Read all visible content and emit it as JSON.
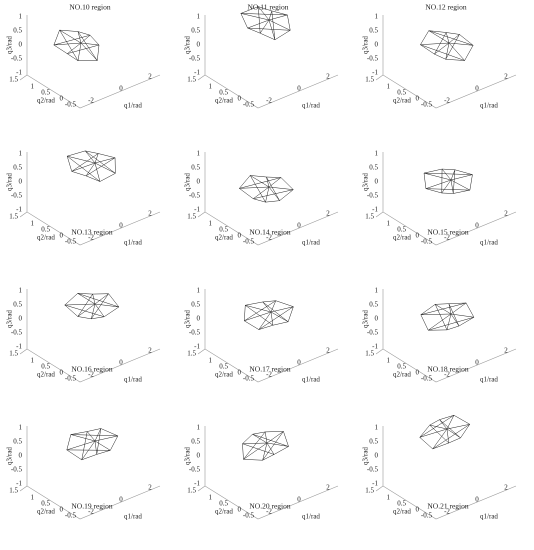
{
  "panels": [
    {
      "title": "NO.10 region"
    },
    {
      "title": "NO.11 region"
    },
    {
      "title": "NO.12 region"
    },
    {
      "title": "NO.13 region"
    },
    {
      "title": "NO.14 region"
    },
    {
      "title": "NO.15 region"
    },
    {
      "title": "NO.16 region"
    },
    {
      "title": "NO.17 region"
    },
    {
      "title": "NO.18 region"
    },
    {
      "title": "NO.19 region"
    },
    {
      "title": "NO.20 region"
    },
    {
      "title": "NO.21 region"
    }
  ],
  "x_label": "q1/rad",
  "y_label": "q2/rad",
  "z_label": "q3/rad",
  "x_ticks": [
    -2,
    0,
    2
  ],
  "y_ticks": [
    1.5,
    1,
    0.5,
    0,
    -0.5
  ],
  "z_ticks": [
    1,
    0.5,
    0,
    -0.5,
    -1
  ]
}
